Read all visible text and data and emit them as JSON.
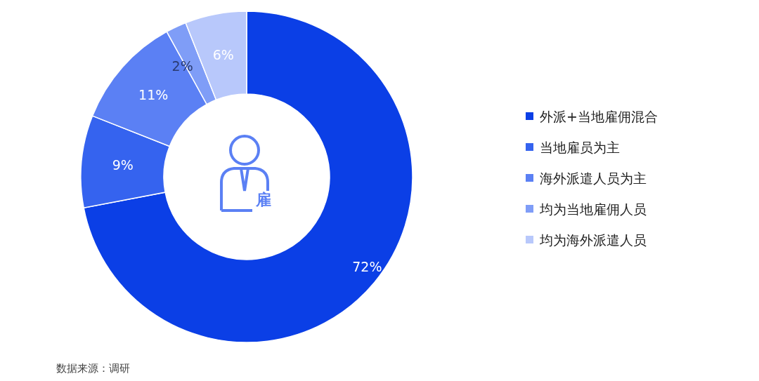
{
  "chart_data": {
    "type": "donut",
    "categories": [
      "外派+当地雇佣混合",
      "当地雇员为主",
      "海外派遣人员为主",
      "均为当地雇佣人员",
      "均为海外派遣人员"
    ],
    "values": [
      72,
      9,
      11,
      2,
      6
    ],
    "colors": [
      "#0b3fe6",
      "#3563ef",
      "#5b80f4",
      "#7f9df7",
      "#b8c8fb"
    ],
    "value_labels": [
      "72%",
      "9%",
      "11%",
      "2%",
      "6%"
    ],
    "legend": "right",
    "annotations": [
      "雇",
      "数据来源：调研"
    ]
  }
}
